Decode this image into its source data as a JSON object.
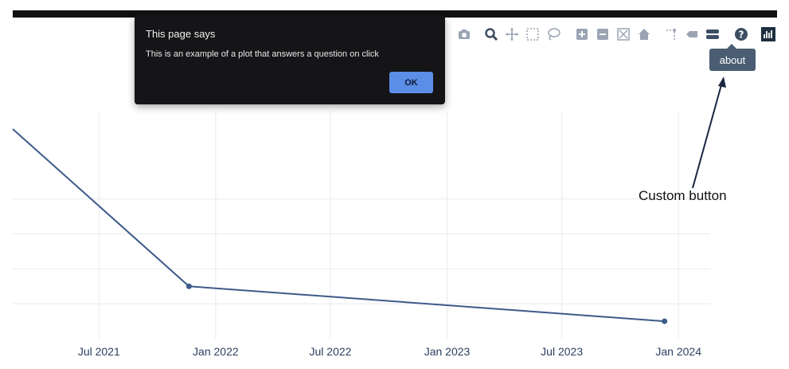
{
  "dialog": {
    "title": "This page says",
    "message": "This is an example of a plot that answers a question on click",
    "ok_label": "OK"
  },
  "modebar": {
    "buttons": [
      {
        "icon": "camera-icon"
      },
      {
        "icon": "zoom-icon"
      },
      {
        "icon": "pan-icon"
      },
      {
        "icon": "box-select-icon"
      },
      {
        "icon": "lasso-select-icon"
      },
      {
        "icon": "zoom-in-icon"
      },
      {
        "icon": "zoom-out-icon"
      },
      {
        "icon": "autoscale-icon"
      },
      {
        "icon": "home-icon"
      },
      {
        "icon": "spike-lines-icon"
      },
      {
        "icon": "hover-closest-icon"
      },
      {
        "icon": "hover-compare-icon"
      },
      {
        "icon": "about-icon"
      },
      {
        "icon": "plotly-logo-icon"
      }
    ],
    "tooltip": "about"
  },
  "annotation": {
    "text": "Custom button"
  },
  "chart_data": {
    "type": "line",
    "x": [
      "2021-02-15",
      "2021-11-20",
      "2023-12-10"
    ],
    "y": [
      12,
      3,
      1
    ],
    "x_range": [
      "2021-02-15",
      "2024-02-20"
    ],
    "y_range": [
      0,
      13
    ],
    "x_tick_labels": [
      "Jul 2021",
      "Jan 2022",
      "Jul 2022",
      "Jan 2023",
      "Jul 2023",
      "Jan 2024"
    ],
    "x_ticks": [
      "2021-07-01",
      "2022-01-01",
      "2022-07-01",
      "2023-01-01",
      "2023-07-01",
      "2024-01-01"
    ],
    "grid": true,
    "line_color": "#3d5a89"
  }
}
